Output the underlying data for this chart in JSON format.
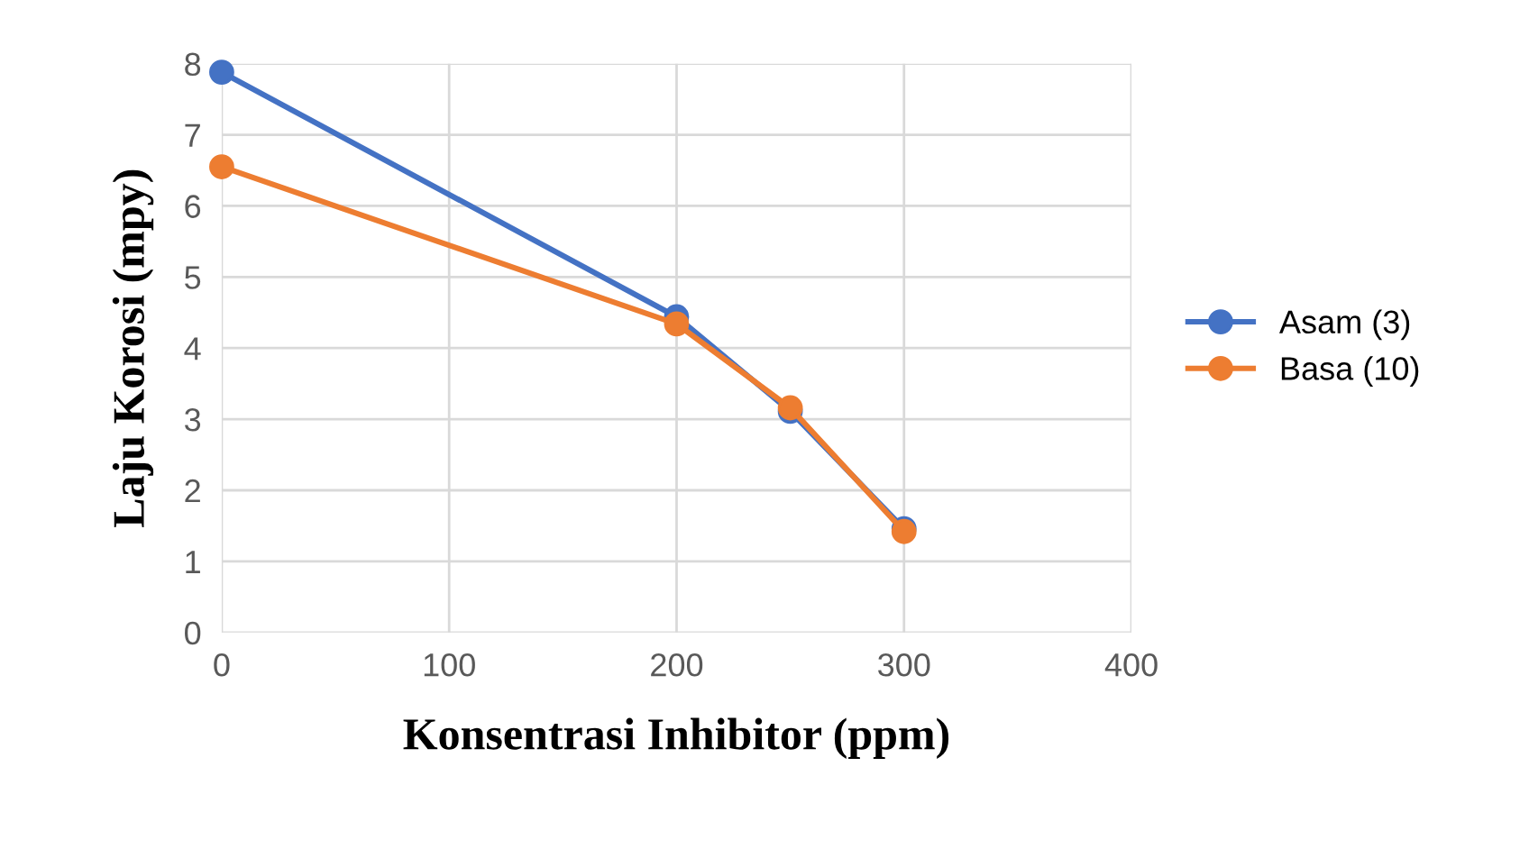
{
  "chart_data": {
    "type": "line",
    "xlabel": "Konsentrasi Inhibitor (ppm)",
    "ylabel": "Laju Korosi (mpy)",
    "x": [
      0,
      200,
      250,
      300
    ],
    "series": [
      {
        "name": "Asam (3)",
        "color": "#4472c4",
        "values": [
          7.88,
          4.44,
          3.11,
          1.46
        ]
      },
      {
        "name": "Basa (10)",
        "color": "#ed7d31",
        "values": [
          6.55,
          4.34,
          3.16,
          1.42
        ]
      }
    ],
    "xlim": [
      0,
      400
    ],
    "xticks": [
      0,
      100,
      200,
      300,
      400
    ],
    "ylim": [
      0,
      8
    ],
    "yticks": [
      0,
      1,
      2,
      3,
      4,
      5,
      6,
      7,
      8
    ],
    "grid": true,
    "legend": "right",
    "marker": "circle",
    "line_style": "solid"
  }
}
